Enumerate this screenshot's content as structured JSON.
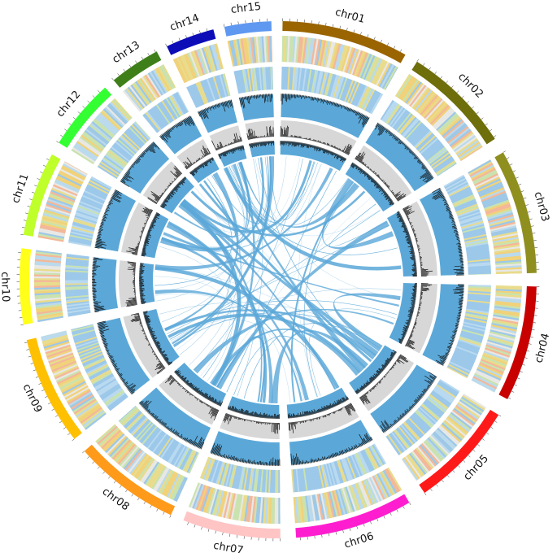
{
  "diagram": {
    "type": "circos",
    "chromosomes": [
      {
        "name": "chr01",
        "color": "#9A6400"
      },
      {
        "name": "chr02",
        "color": "#6E6E0A"
      },
      {
        "name": "chr03",
        "color": "#8F8F20"
      },
      {
        "name": "chr04",
        "color": "#C80000"
      },
      {
        "name": "chr05",
        "color": "#FF1A1A"
      },
      {
        "name": "chr06",
        "color": "#FF1ECF"
      },
      {
        "name": "chr07",
        "color": "#FFC4C4"
      },
      {
        "name": "chr08",
        "color": "#FF9A1A"
      },
      {
        "name": "chr09",
        "color": "#FFC000"
      },
      {
        "name": "chr10",
        "color": "#FFFF1A"
      },
      {
        "name": "chr11",
        "color": "#BFFF2A"
      },
      {
        "name": "chr12",
        "color": "#33FF33"
      },
      {
        "name": "chr13",
        "color": "#3F7F1A"
      },
      {
        "name": "chr14",
        "color": "#0D0DB8"
      },
      {
        "name": "chr15",
        "color": "#5F98F0"
      }
    ],
    "heatmap_palette": [
      "#9CC8EA",
      "#B9DAF0",
      "#E9DC8C",
      "#F1D27A",
      "#C9E3B0",
      "#F4B79A",
      "#E8E8E8"
    ],
    "density_fill_color": "#5BA8D8",
    "density_band_color": "#D7D7D7",
    "link_color": "#5BA8D8"
  }
}
